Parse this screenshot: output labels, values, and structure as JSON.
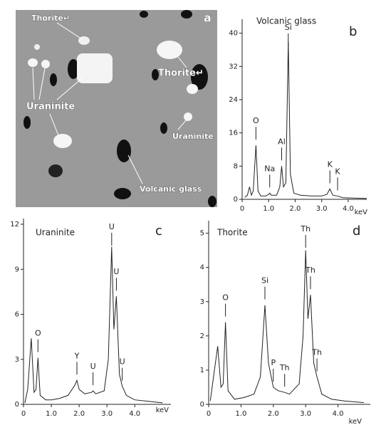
{
  "image_panel": {
    "panel_label": "a",
    "labels": [
      "Thorite↵",
      "Thorite↵",
      "Uraninite",
      "Uraninite",
      "Volcanic glass"
    ]
  },
  "chart_data": [
    {
      "type": "line",
      "title": "Volcanic glass",
      "panel_label": "b",
      "x_label": "keV",
      "x": [
        0.1,
        0.2,
        0.28,
        0.35,
        0.42,
        0.52,
        0.6,
        0.7,
        0.9,
        1.0,
        1.04,
        1.1,
        1.3,
        1.42,
        1.49,
        1.56,
        1.65,
        1.74,
        1.82,
        1.95,
        2.2,
        2.6,
        3.0,
        3.2,
        3.31,
        3.42,
        3.6,
        3.8,
        4.2,
        4.7
      ],
      "series": [
        {
          "color": "#222222",
          "values": [
            0.5,
            1,
            3,
            1,
            2,
            13,
            2,
            0.8,
            0.8,
            1.2,
            1.5,
            1,
            1,
            3,
            8,
            3,
            4,
            38,
            6,
            1.5,
            1,
            0.8,
            0.8,
            1.2,
            2.5,
            1,
            0.8,
            0.4,
            0.3,
            0.2
          ]
        }
      ],
      "annotations": [
        {
          "text": "O",
          "x": 0.52
        },
        {
          "text": "Na",
          "x": 1.04
        },
        {
          "text": "Al",
          "x": 1.49
        },
        {
          "text": "Si",
          "x": 1.74
        },
        {
          "text": "K",
          "x": 3.31
        },
        {
          "text": "K",
          "x": 3.6
        }
      ],
      "xlim": [
        0,
        4.7
      ],
      "ylim": [
        0,
        42
      ],
      "xticks": [
        0,
        {
          "value": 1,
          "label": "1.0"
        },
        {
          "value": 2,
          "label": "2.0"
        },
        {
          "value": 3,
          "label": "3.0"
        },
        {
          "value": 4,
          "label": "4.0"
        }
      ],
      "yticks": [
        0,
        8,
        16,
        24,
        32,
        40
      ]
    },
    {
      "type": "line",
      "title": "Uraninite",
      "panel_label": "c",
      "x_label": "keV",
      "x": [
        0.05,
        0.15,
        0.28,
        0.38,
        0.45,
        0.52,
        0.6,
        0.8,
        1.0,
        1.3,
        1.6,
        1.85,
        1.92,
        2.0,
        2.2,
        2.45,
        2.5,
        2.6,
        2.9,
        3.05,
        3.17,
        3.25,
        3.34,
        3.45,
        3.55,
        3.7,
        4.0,
        4.5,
        5.0
      ],
      "series": [
        {
          "color": "#222222",
          "values": [
            0.1,
            1,
            4.4,
            0.8,
            1,
            3.1,
            0.6,
            0.3,
            0.3,
            0.4,
            0.6,
            1.3,
            1.6,
            1,
            0.7,
            0.8,
            0.9,
            0.7,
            0.9,
            3,
            10.5,
            5,
            7.2,
            2,
            1.2,
            0.6,
            0.3,
            0.2,
            0.1
          ]
        }
      ],
      "annotations": [
        {
          "text": "O",
          "x": 0.52
        },
        {
          "text": "Y",
          "x": 1.92
        },
        {
          "text": "U",
          "x": 2.5
        },
        {
          "text": "U",
          "x": 3.17
        },
        {
          "text": "U",
          "x": 3.34
        },
        {
          "text": "U",
          "x": 3.55
        }
      ],
      "xlim": [
        0,
        5.3
      ],
      "ylim": [
        0,
        12
      ],
      "xticks": [
        0,
        {
          "value": 1,
          "label": "1.0"
        },
        {
          "value": 2,
          "label": "2.0"
        },
        {
          "value": 3,
          "label": "3.0"
        },
        {
          "value": 4,
          "label": "4.0"
        }
      ],
      "yticks": [
        0,
        3,
        6,
        9,
        12
      ]
    },
    {
      "type": "line",
      "title": "Thorite",
      "panel_label": "d",
      "x_label": "keV",
      "x": [
        0.05,
        0.15,
        0.28,
        0.38,
        0.45,
        0.52,
        0.6,
        0.8,
        1.1,
        1.4,
        1.6,
        1.74,
        1.85,
        2.0,
        2.15,
        2.35,
        2.5,
        2.8,
        2.92,
        3.0,
        3.07,
        3.15,
        3.25,
        3.35,
        3.5,
        3.8,
        4.2,
        4.8
      ],
      "series": [
        {
          "color": "#222222",
          "values": [
            0.1,
            0.8,
            1.7,
            0.5,
            0.6,
            2.4,
            0.4,
            0.15,
            0.2,
            0.3,
            0.8,
            2.9,
            1.2,
            0.5,
            0.4,
            0.35,
            0.3,
            0.6,
            2,
            4.5,
            2.5,
            3.2,
            1.2,
            0.8,
            0.3,
            0.15,
            0.1,
            0.05
          ]
        }
      ],
      "annotations": [
        {
          "text": "O",
          "x": 0.52
        },
        {
          "text": "Si",
          "x": 1.74
        },
        {
          "text": "P",
          "x": 2.0
        },
        {
          "text": "Th",
          "x": 2.35
        },
        {
          "text": "Th",
          "x": 3.0
        },
        {
          "text": "Th",
          "x": 3.15
        },
        {
          "text": "Th",
          "x": 3.35
        }
      ],
      "xlim": [
        0,
        5.0
      ],
      "ylim": [
        0,
        5.2
      ],
      "xticks": [
        0,
        {
          "value": 1,
          "label": "1.0"
        },
        {
          "value": 2,
          "label": "2.0"
        },
        {
          "value": 3,
          "label": "3.0"
        },
        {
          "value": 4,
          "label": "4.0"
        }
      ],
      "yticks": [
        0,
        1,
        2,
        3,
        4,
        5
      ]
    }
  ]
}
